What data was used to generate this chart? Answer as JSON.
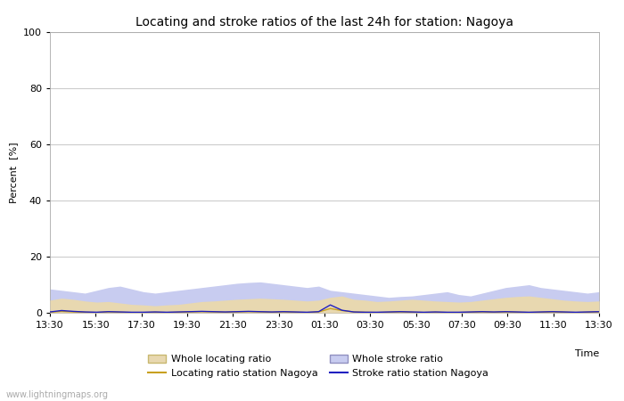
{
  "title": "Locating and stroke ratios of the last 24h for station: Nagoya",
  "ylabel": "Percent  [%]",
  "xlabel": "Time",
  "ylim": [
    0,
    100
  ],
  "yticks": [
    0,
    20,
    40,
    60,
    80,
    100
  ],
  "xtick_labels": [
    "13:30",
    "15:30",
    "17:30",
    "19:30",
    "21:30",
    "23:30",
    "01:30",
    "03:30",
    "05:30",
    "07:30",
    "09:30",
    "11:30",
    "13:30"
  ],
  "background_color": "#ffffff",
  "plot_bg_color": "#ffffff",
  "grid_color": "#cccccc",
  "watermark": "www.lightningmaps.org",
  "whole_locating_fill_color": "#e8d8b0",
  "whole_locating_line_color": "#c8b870",
  "whole_stroke_fill_color": "#c8ccf0",
  "whole_stroke_line_color": "#9090c0",
  "locating_station_color": "#c8a020",
  "stroke_station_color": "#2020c0",
  "whole_locating": [
    4.5,
    5.2,
    4.8,
    4.2,
    3.8,
    4.0,
    3.5,
    3.0,
    2.8,
    2.5,
    2.8,
    3.0,
    3.5,
    4.0,
    4.2,
    4.5,
    4.8,
    5.0,
    5.2,
    5.0,
    4.8,
    4.5,
    4.2,
    4.5,
    5.5,
    6.0,
    4.8,
    4.5,
    4.0,
    4.2,
    4.5,
    4.8,
    4.5,
    4.2,
    4.0,
    3.8,
    4.0,
    4.5,
    5.0,
    5.5,
    5.8,
    6.0,
    5.5,
    5.0,
    4.5,
    4.2,
    4.0,
    4.2
  ],
  "whole_stroke": [
    8.5,
    8.0,
    7.5,
    7.0,
    8.0,
    9.0,
    9.5,
    8.5,
    7.5,
    7.0,
    7.5,
    8.0,
    8.5,
    9.0,
    9.5,
    10.0,
    10.5,
    10.8,
    11.0,
    10.5,
    10.0,
    9.5,
    9.0,
    9.5,
    8.0,
    7.5,
    7.0,
    6.5,
    6.0,
    5.5,
    5.8,
    6.0,
    6.5,
    7.0,
    7.5,
    6.5,
    6.0,
    7.0,
    8.0,
    9.0,
    9.5,
    10.0,
    9.0,
    8.5,
    8.0,
    7.5,
    7.0,
    7.5
  ],
  "locating_station": [
    0.2,
    0.5,
    0.3,
    0.2,
    0.1,
    0.3,
    0.2,
    0.1,
    0.1,
    0.2,
    0.1,
    0.2,
    0.3,
    0.4,
    0.3,
    0.2,
    0.3,
    0.4,
    0.3,
    0.2,
    0.3,
    0.2,
    0.1,
    0.3,
    1.5,
    0.8,
    0.3,
    0.2,
    0.1,
    0.2,
    0.3,
    0.2,
    0.1,
    0.2,
    0.1,
    0.1,
    0.2,
    0.3,
    0.2,
    0.3,
    0.2,
    0.1,
    0.2,
    0.3,
    0.2,
    0.1,
    0.2,
    0.3
  ],
  "stroke_station": [
    0.3,
    0.8,
    0.5,
    0.3,
    0.2,
    0.4,
    0.3,
    0.2,
    0.2,
    0.3,
    0.2,
    0.3,
    0.4,
    0.5,
    0.4,
    0.3,
    0.4,
    0.5,
    0.4,
    0.3,
    0.4,
    0.3,
    0.2,
    0.4,
    2.8,
    0.9,
    0.3,
    0.2,
    0.2,
    0.3,
    0.4,
    0.3,
    0.2,
    0.3,
    0.2,
    0.2,
    0.3,
    0.4,
    0.3,
    0.4,
    0.3,
    0.2,
    0.3,
    0.4,
    0.3,
    0.2,
    0.3,
    0.4
  ],
  "title_fontsize": 10,
  "axis_fontsize": 8,
  "tick_fontsize": 8
}
